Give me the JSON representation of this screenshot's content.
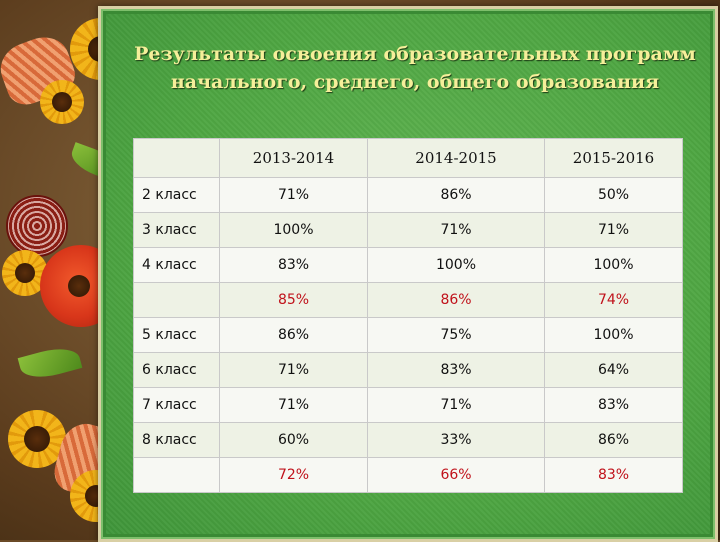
{
  "title": {
    "line1": "Результаты освоения образовательных программ",
    "line2": "начального, среднего, общего образования"
  },
  "table": {
    "columns": [
      "",
      "2013-2014",
      "2014-2015",
      "2015-2016"
    ],
    "rows": [
      {
        "label": "2 класс",
        "values": [
          "71%",
          "86%",
          "50%"
        ],
        "average": false
      },
      {
        "label": "3 класс",
        "values": [
          "100%",
          "71%",
          "71%"
        ],
        "average": false
      },
      {
        "label": "4 класс",
        "values": [
          "83%",
          "100%",
          "100%"
        ],
        "average": false
      },
      {
        "label": "",
        "values": [
          "85%",
          "86%",
          "74%"
        ],
        "average": true
      },
      {
        "label": "5 класс",
        "values": [
          "86%",
          "75%",
          "100%"
        ],
        "average": false
      },
      {
        "label": "6 класс",
        "values": [
          "71%",
          "83%",
          "64%"
        ],
        "average": false
      },
      {
        "label": "7 класс",
        "values": [
          "71%",
          "71%",
          "83%"
        ],
        "average": false
      },
      {
        "label": "8 класс",
        "values": [
          "60%",
          "33%",
          "86%"
        ],
        "average": false
      },
      {
        "label": "",
        "values": [
          "72%",
          "66%",
          "83%"
        ],
        "average": true
      }
    ]
  },
  "colors": {
    "title": "#f6ef9a",
    "average_values": "#c0121b",
    "panel": "#4ea642"
  }
}
